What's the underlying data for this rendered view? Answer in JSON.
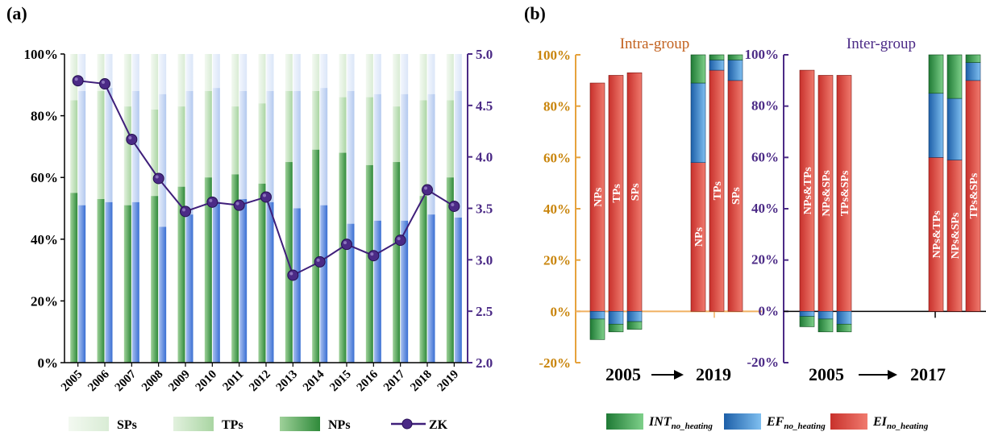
{
  "panel_a": {
    "label": "(a)",
    "legend": {
      "sps": "SPs",
      "tps": "TPs",
      "nps": "NPs",
      "zk": "ZK"
    },
    "colors": {
      "sps": "#e3f0e0",
      "tps": "#c5e2c0",
      "nps": "#5aa95a",
      "ib_light": "#e6edf9",
      "ib_mid": "#c9d8f3",
      "ib_dark": "#4f7fdc",
      "zk": "#3f1f7a"
    }
  },
  "panel_b": {
    "label": "(b)",
    "intra_title": "Intra-group",
    "inter_title": "Inter-group",
    "intra_period": {
      "start": "2005",
      "end": "2019"
    },
    "inter_period": {
      "start": "2005",
      "end": "2017"
    },
    "arrow": "→",
    "legend": {
      "int_main": "INT",
      "int_sub": "no_heating",
      "ef_main": "EF",
      "ef_sub": "no_heating",
      "ei_main": "EI",
      "ei_sub": "no_heating"
    },
    "colors": {
      "int": "#3fae5a",
      "ef": "#2f86d6",
      "ei": "#e3483f",
      "intra_axis": "#e6a23c",
      "inter_axis": "#4b2a86"
    }
  },
  "chart_data": [
    {
      "type": "bar",
      "title": "",
      "categories": [
        "2005",
        "2006",
        "2007",
        "2008",
        "2009",
        "2010",
        "2011",
        "2012",
        "2013",
        "2014",
        "2015",
        "2016",
        "2017",
        "2018",
        "2019"
      ],
      "yticks_left": [
        "0%",
        "20%",
        "40%",
        "60%",
        "80%",
        "100%"
      ],
      "ylim_left": [
        0,
        100
      ],
      "yticks_right": [
        "2.0",
        "2.5",
        "3.0",
        "3.5",
        "4.0",
        "4.5",
        "5.0"
      ],
      "ylim_right": [
        2.0,
        5.0
      ],
      "series": [
        {
          "name": "NPs",
          "values": [
            55,
            53,
            51,
            54,
            57,
            60,
            61,
            58,
            65,
            69,
            68,
            64,
            65,
            54,
            60
          ]
        },
        {
          "name": "TPs",
          "values": [
            85,
            88,
            83,
            82,
            83,
            88,
            83,
            84,
            88,
            88,
            86,
            86,
            83,
            85,
            85
          ]
        },
        {
          "name": "SPs",
          "values": [
            100,
            100,
            100,
            100,
            100,
            100,
            100,
            100,
            100,
            100,
            100,
            100,
            100,
            100,
            100
          ]
        },
        {
          "name": "ZK",
          "type": "line",
          "values": [
            4.74,
            4.71,
            4.17,
            3.79,
            3.47,
            3.56,
            3.53,
            3.61,
            2.85,
            2.98,
            3.15,
            3.04,
            3.19,
            3.68,
            3.52
          ]
        }
      ],
      "blue_stack": {
        "inner": [
          51,
          52,
          52,
          44,
          48,
          52,
          53,
          52,
          50,
          51,
          45,
          46,
          46,
          48,
          47
        ],
        "mid": [
          88,
          89,
          88,
          87,
          88,
          89,
          88,
          88,
          88,
          89,
          88,
          87,
          87,
          87,
          88
        ],
        "outer": [
          100,
          100,
          100,
          100,
          100,
          100,
          100,
          100,
          100,
          100,
          100,
          100,
          100,
          100,
          100
        ]
      },
      "grid": false,
      "legend_position": "bottom"
    },
    {
      "type": "bar",
      "title": "Intra-group",
      "yticks": [
        "-20%",
        "0%",
        "20%",
        "40%",
        "60%",
        "80%",
        "100%"
      ],
      "ylim": [
        -20,
        100
      ],
      "groups": [
        {
          "period": "2005",
          "bars": [
            {
              "label": "NPs",
              "EI": 89,
              "EF": -3,
              "INT": -8
            },
            {
              "label": "TPs",
              "EI": 92,
              "EF": -5,
              "INT": -3
            },
            {
              "label": "SPs",
              "EI": 93,
              "EF": -4,
              "INT": -3
            }
          ]
        },
        {
          "period": "2019",
          "bars": [
            {
              "label": "NPs",
              "EI": 58,
              "EF": 31,
              "INT": 11
            },
            {
              "label": "TPs",
              "EI": 94,
              "EF": 4,
              "INT": 2
            },
            {
              "label": "SPs",
              "EI": 90,
              "EF": 8,
              "INT": 2
            }
          ]
        }
      ],
      "grid": false,
      "legend_position": "bottom"
    },
    {
      "type": "bar",
      "title": "Inter-group",
      "yticks": [
        "-20%",
        "0%",
        "20%",
        "40%",
        "60%",
        "80%",
        "100%"
      ],
      "ylim": [
        -20,
        100
      ],
      "groups": [
        {
          "period": "2005",
          "bars": [
            {
              "label": "NPs&TPs",
              "EI": 94,
              "EF": -2,
              "INT": -4
            },
            {
              "label": "NPs&SPs",
              "EI": 92,
              "EF": -3,
              "INT": -5
            },
            {
              "label": "TPs&SPs",
              "EI": 92,
              "EF": -5,
              "INT": -3
            }
          ]
        },
        {
          "period": "2017",
          "bars": [
            {
              "label": "NPs&TPs",
              "EI": 60,
              "EF": 25,
              "INT": 15
            },
            {
              "label": "NPs&SPs",
              "EI": 59,
              "EF": 24,
              "INT": 17
            },
            {
              "label": "TPs&SPs",
              "EI": 90,
              "EF": 7,
              "INT": 3
            }
          ]
        }
      ],
      "grid": false,
      "legend_position": "bottom"
    }
  ]
}
